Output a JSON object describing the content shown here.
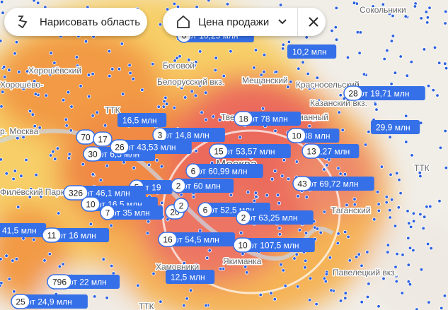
{
  "toolbar": {
    "draw_area": "Нарисовать область",
    "price_filter": "Цена продажи"
  },
  "map_labels": [
    "Сокольники",
    "Хорошёвский",
    "Беговой",
    "Белорусский вкз.",
    "Мещанский",
    "Красносельский",
    "Казанский вкз.",
    "Хорошёво-",
    "р. Москва",
    "Тверской",
    "Москва",
    "Басманный",
    "Филёвский Парк",
    "ТТК",
    "ТТК",
    "Таганский",
    "Павелецкий вкз.",
    "Якиманка",
    "Хамовники",
    "ТТК"
  ],
  "markers": [
    {
      "count": "6",
      "price": "от 10,25 млн"
    },
    {
      "count": null,
      "price": "10,2 млн"
    },
    {
      "count": "28",
      "price": "от 19,71 млн"
    },
    {
      "count": null,
      "price": "16,5 млн"
    },
    {
      "count": "18",
      "price": "от 78 млн"
    },
    {
      "count": "3",
      "price": "от 14,8 млн"
    },
    {
      "count": null,
      "price": "29,9 млн"
    },
    {
      "count": "10",
      "price": "38 млн"
    },
    {
      "count": "70",
      "price": null
    },
    {
      "count": "17",
      "price": null
    },
    {
      "count": "30",
      "price": "от 6,5 млн"
    },
    {
      "count": "26",
      "price": "от 43,53 млн"
    },
    {
      "count": "15",
      "price": "от 53,57 млн"
    },
    {
      "count": "13",
      "price": "127 млн"
    },
    {
      "count": "6",
      "price": "от 60,99 млн"
    },
    {
      "count": "43",
      "price": "от 69,72 млн"
    },
    {
      "count": "5",
      "price": "от 19"
    },
    {
      "count": "2",
      "price": "от 60 млн"
    },
    {
      "count": "326",
      "price": "от 46,1 млн"
    },
    {
      "count": "10",
      "price": "от 16,5 млн"
    },
    {
      "count": "7",
      "price": "от 35 млн"
    },
    {
      "count": "20",
      "price": null
    },
    {
      "count": "6",
      "price": "от 52,5 млн"
    },
    {
      "count": "2",
      "price": null
    },
    {
      "count": "2",
      "price": "от 63,25 млн"
    },
    {
      "count": null,
      "price": "41,5 млн"
    },
    {
      "count": "11",
      "price": "от 16 млн"
    },
    {
      "count": "16",
      "price": "от 54,5 млн"
    },
    {
      "count": "10",
      "price": "от 107,5 млн"
    },
    {
      "count": null,
      "price": "12,5 млн"
    },
    {
      "count": "796",
      "price": "от 22 млн"
    },
    {
      "count": "25",
      "price": "от 24,9 млн"
    }
  ]
}
